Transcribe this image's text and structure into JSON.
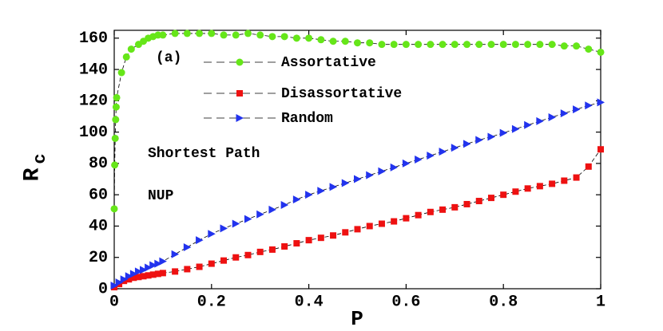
{
  "chart_data": {
    "type": "line",
    "xlabel": "P",
    "ylabel": "R",
    "ylabel_subscript": "c",
    "annotations": [
      "(a)",
      "Shortest Path",
      "NUP"
    ],
    "xlim": [
      0,
      1
    ],
    "ylim": [
      0,
      165
    ],
    "xticks": [
      0,
      0.2,
      0.4,
      0.6,
      0.8,
      1
    ],
    "yticks": [
      0,
      20,
      40,
      60,
      80,
      100,
      120,
      140,
      160
    ],
    "series": [
      {
        "name": "Assortative",
        "color": "#66e619",
        "marker": "circle",
        "x": [
          0,
          0.001,
          0.002,
          0.003,
          0.004,
          0.005,
          0.015,
          0.025,
          0.035,
          0.05,
          0.06,
          0.07,
          0.08,
          0.09,
          0.1,
          0.125,
          0.15,
          0.175,
          0.2,
          0.225,
          0.25,
          0.275,
          0.3,
          0.325,
          0.35,
          0.375,
          0.4,
          0.425,
          0.45,
          0.475,
          0.5,
          0.525,
          0.55,
          0.575,
          0.6,
          0.625,
          0.65,
          0.675,
          0.7,
          0.725,
          0.75,
          0.775,
          0.8,
          0.825,
          0.85,
          0.875,
          0.9,
          0.925,
          0.95,
          0.975,
          1
        ],
        "values": [
          51,
          79,
          96,
          108,
          116,
          122,
          138,
          148,
          153,
          156,
          158,
          160,
          161,
          162,
          162,
          163,
          163,
          163,
          163,
          162,
          162,
          163,
          162,
          161,
          161,
          160,
          160,
          159,
          158,
          158,
          157,
          157,
          156,
          156,
          156,
          156,
          156,
          156,
          156,
          156,
          156,
          156,
          156,
          156,
          156,
          156,
          156,
          155,
          155,
          153,
          151
        ]
      },
      {
        "name": "Disassortative",
        "color": "#ee1111",
        "marker": "square",
        "x": [
          0,
          0.01,
          0.02,
          0.03,
          0.04,
          0.05,
          0.06,
          0.07,
          0.08,
          0.09,
          0.1,
          0.125,
          0.15,
          0.175,
          0.2,
          0.225,
          0.25,
          0.275,
          0.3,
          0.325,
          0.35,
          0.375,
          0.4,
          0.425,
          0.45,
          0.475,
          0.5,
          0.525,
          0.55,
          0.575,
          0.6,
          0.625,
          0.65,
          0.675,
          0.7,
          0.725,
          0.75,
          0.775,
          0.8,
          0.825,
          0.85,
          0.875,
          0.9,
          0.925,
          0.95,
          0.975,
          1
        ],
        "values": [
          1,
          3,
          5,
          6,
          7,
          7.5,
          8,
          8.5,
          9,
          9.5,
          10,
          11,
          12.5,
          14,
          16,
          18,
          20,
          21.5,
          23.5,
          25,
          27,
          29,
          31,
          32.5,
          34,
          36,
          38,
          40,
          41.5,
          43,
          45,
          47,
          49,
          50.5,
          52,
          54,
          56,
          58,
          60,
          62,
          64,
          65.5,
          67,
          69,
          71,
          78,
          89
        ]
      },
      {
        "name": "Random",
        "color": "#2233ee",
        "marker": "triangle",
        "x": [
          0,
          0.01,
          0.02,
          0.03,
          0.04,
          0.05,
          0.06,
          0.07,
          0.08,
          0.09,
          0.1,
          0.125,
          0.15,
          0.175,
          0.2,
          0.225,
          0.25,
          0.275,
          0.3,
          0.325,
          0.35,
          0.375,
          0.4,
          0.425,
          0.45,
          0.475,
          0.5,
          0.525,
          0.55,
          0.575,
          0.6,
          0.625,
          0.65,
          0.675,
          0.7,
          0.725,
          0.75,
          0.775,
          0.8,
          0.825,
          0.85,
          0.875,
          0.9,
          0.925,
          0.95,
          0.975,
          1
        ],
        "values": [
          2,
          4,
          6,
          8,
          9.5,
          11,
          12,
          13.5,
          15,
          16,
          17.5,
          22,
          26.5,
          31,
          35,
          38.5,
          41.5,
          44.5,
          47.5,
          50.5,
          53.5,
          57,
          60,
          62.5,
          65,
          67.5,
          70,
          72.5,
          75,
          77.5,
          80,
          82.5,
          85,
          87.5,
          90,
          92.5,
          95,
          97,
          99.5,
          102,
          104.5,
          107,
          109.5,
          112,
          114.5,
          117,
          119
        ]
      }
    ]
  }
}
